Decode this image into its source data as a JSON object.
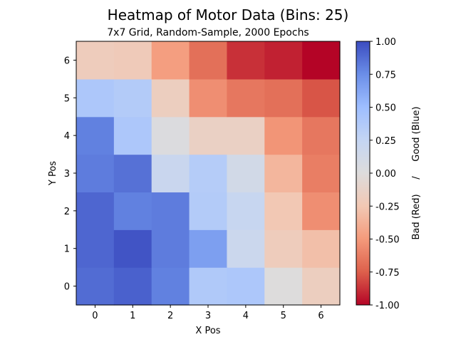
{
  "chart_data": {
    "type": "heatmap",
    "title": "Heatmap of Motor Data (Bins: 25)",
    "subtitle": "7x7 Grid, Random-Sample, 2000 Epochs",
    "xlabel": "X Pos",
    "ylabel": "Y Pos",
    "x_categories": [
      "0",
      "1",
      "2",
      "3",
      "4",
      "5",
      "6"
    ],
    "y_categories": [
      "0",
      "1",
      "2",
      "3",
      "4",
      "5",
      "6"
    ],
    "values": [
      [
        0.88,
        0.92,
        0.8,
        0.38,
        0.4,
        0.0,
        -0.18
      ],
      [
        0.9,
        0.97,
        0.82,
        0.66,
        0.18,
        -0.2,
        -0.3
      ],
      [
        0.9,
        0.8,
        0.82,
        0.36,
        0.22,
        -0.25,
        -0.55
      ],
      [
        0.82,
        0.86,
        0.2,
        0.35,
        0.12,
        -0.35,
        -0.62
      ],
      [
        0.8,
        0.4,
        0.02,
        -0.15,
        -0.15,
        -0.52,
        -0.65
      ],
      [
        0.4,
        0.36,
        -0.18,
        -0.55,
        -0.65,
        -0.68,
        -0.78
      ],
      [
        -0.2,
        -0.22,
        -0.48,
        -0.68,
        -0.88,
        -0.92,
        -1.0
      ]
    ],
    "colorbar": {
      "label": "Bad (Red)     /     Good (Blue)",
      "range": [
        -1.0,
        1.0
      ],
      "ticks": [
        "-1.00",
        "-0.75",
        "-0.50",
        "-0.25",
        "0.00",
        "0.25",
        "0.50",
        "0.75",
        "1.00"
      ],
      "colormap": "coolwarm",
      "low_color": "#b40426",
      "mid_color": "#dddcdc",
      "high_color": "#3b4cc0"
    },
    "grid": false
  }
}
